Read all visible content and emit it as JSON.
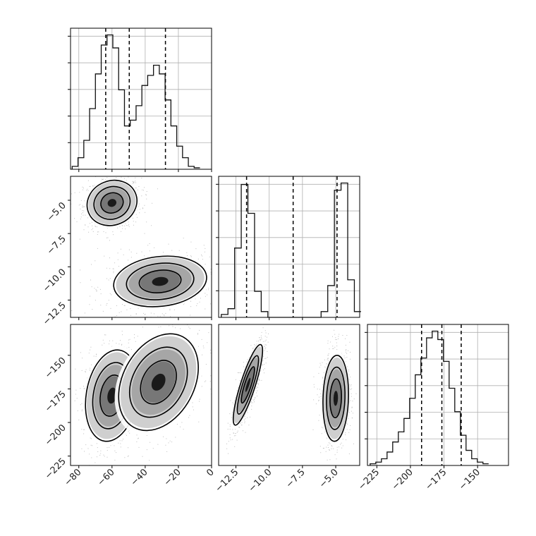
{
  "chart_data": {
    "type": "corner",
    "title": "",
    "parameters": [
      {
        "label": "",
        "range": [
          -85,
          0
        ],
        "ticks": [
          "−80",
          "−60",
          "−40",
          "−20",
          "0"
        ],
        "tick_values": [
          -80,
          -60,
          -40,
          -20,
          0
        ]
      },
      {
        "label": "",
        "range": [
          -13.8,
          -3.2
        ],
        "ticks": [
          "−12.5",
          "−10.0",
          "−7.5",
          "−5.0"
        ],
        "tick_values": [
          -12.5,
          -10.0,
          -7.5,
          -5.0
        ]
      },
      {
        "label": "",
        "range": [
          -232,
          -127
        ],
        "ticks": [
          "−225",
          "−200",
          "−175",
          "−150"
        ],
        "tick_values": [
          -225,
          -200,
          -175,
          -150
        ]
      }
    ],
    "histograms": [
      {
        "param": 0,
        "bin_start": -84,
        "bin_width": 3.5,
        "counts": [
          2,
          8,
          20,
          42,
          66,
          86,
          93,
          84,
          55,
          30,
          34,
          44,
          58,
          65,
          72,
          66,
          48,
          30,
          16,
          8,
          2,
          1
        ],
        "quantiles": [
          -63.8,
          -49.6,
          -27.8
        ]
      },
      {
        "param": 1,
        "bin_start": -13.6,
        "bin_width": 0.5,
        "counts": [
          2,
          6,
          48,
          92,
          72,
          18,
          4,
          0,
          0,
          0,
          0,
          0,
          0,
          0,
          0,
          4,
          22,
          88,
          93,
          26,
          4
        ],
        "quantiles": [
          -11.7,
          -8.2,
          -4.9
        ]
      },
      {
        "param": 2,
        "bin_start": -230,
        "bin_width": 4.2,
        "counts": [
          1,
          2,
          4,
          8,
          14,
          20,
          28,
          40,
          54,
          64,
          76,
          80,
          75,
          62,
          46,
          32,
          18,
          9,
          4,
          2,
          1
        ],
        "quantiles": [
          -191.7,
          -176.6,
          -162.2
        ]
      }
    ],
    "pair_plots": [
      {
        "x_param": 0,
        "y_param": 1,
        "clusters": [
          {
            "x": -60,
            "y": -5.2,
            "sx": 7.5,
            "sy": 0.85,
            "rho": 0.1
          },
          {
            "x": -31,
            "y": -11.1,
            "sx": 14,
            "sy": 0.95,
            "rho": 0.15
          }
        ]
      },
      {
        "x_param": 0,
        "y_param": 2,
        "clusters": [
          {
            "x": -60,
            "y": -180,
            "sx": 8,
            "sy": 17,
            "rho": 0.2
          },
          {
            "x": -32,
            "y": -170,
            "sx": 12,
            "sy": 18,
            "rho": 0.3
          }
        ]
      },
      {
        "x_param": 1,
        "y_param": 2,
        "clusters": [
          {
            "x": -11.6,
            "y": -172,
            "sx": 0.55,
            "sy": 15,
            "rho": 0.85
          },
          {
            "x": -5.0,
            "y": -182,
            "sx": 0.48,
            "sy": 16,
            "rho": 0.1
          }
        ]
      }
    ],
    "grid": true,
    "colors": {
      "line": "#111111",
      "grid": "#b0b0b0",
      "points": "#000000"
    }
  }
}
